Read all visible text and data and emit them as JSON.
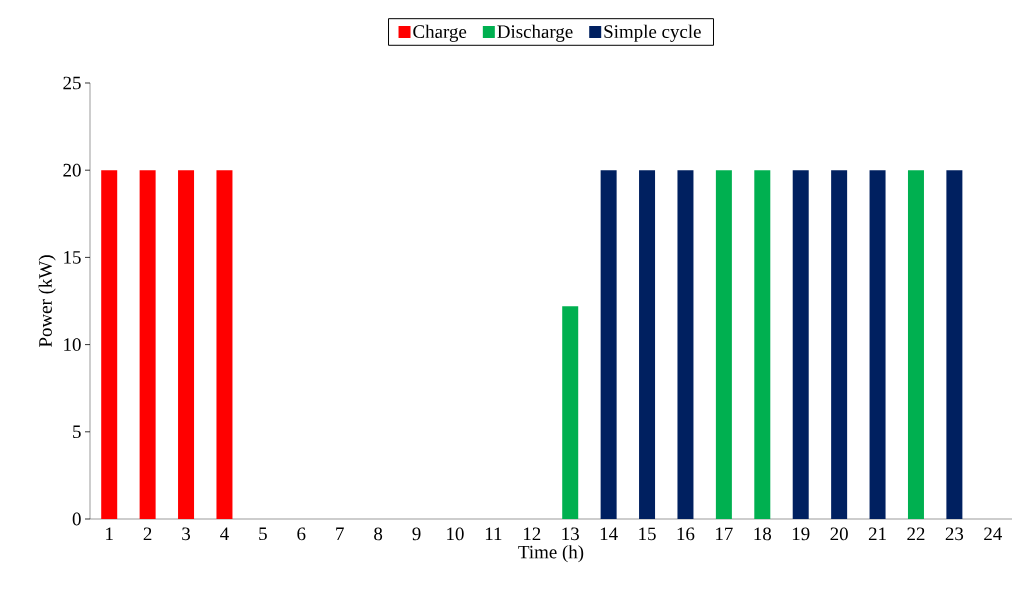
{
  "chart_data": {
    "type": "bar",
    "xlabel": "Time (h)",
    "ylabel": "Power (kW)",
    "categories": [
      "1",
      "2",
      "3",
      "4",
      "5",
      "6",
      "7",
      "8",
      "9",
      "10",
      "11",
      "12",
      "13",
      "14",
      "15",
      "16",
      "17",
      "18",
      "19",
      "20",
      "21",
      "22",
      "23",
      "24"
    ],
    "series": [
      {
        "name": "Charge",
        "color": "#ff0000",
        "values": [
          20,
          20,
          20,
          20,
          null,
          null,
          null,
          null,
          null,
          null,
          null,
          null,
          null,
          null,
          null,
          null,
          null,
          null,
          null,
          null,
          null,
          null,
          null,
          null
        ]
      },
      {
        "name": "Discharge",
        "color": "#00b050",
        "values": [
          null,
          null,
          null,
          null,
          null,
          null,
          null,
          null,
          null,
          null,
          null,
          null,
          12.2,
          null,
          null,
          null,
          20,
          20,
          null,
          null,
          null,
          20,
          null,
          null
        ]
      },
      {
        "name": "Simple cycle",
        "color": "#002060",
        "values": [
          null,
          null,
          null,
          null,
          null,
          null,
          null,
          null,
          null,
          null,
          null,
          null,
          null,
          20,
          20,
          20,
          null,
          null,
          20,
          20,
          20,
          null,
          20,
          null
        ]
      }
    ],
    "ylim": [
      0,
      25
    ],
    "yticks": [
      0,
      5,
      10,
      15,
      20,
      25
    ],
    "grid": false,
    "legend": "top"
  }
}
